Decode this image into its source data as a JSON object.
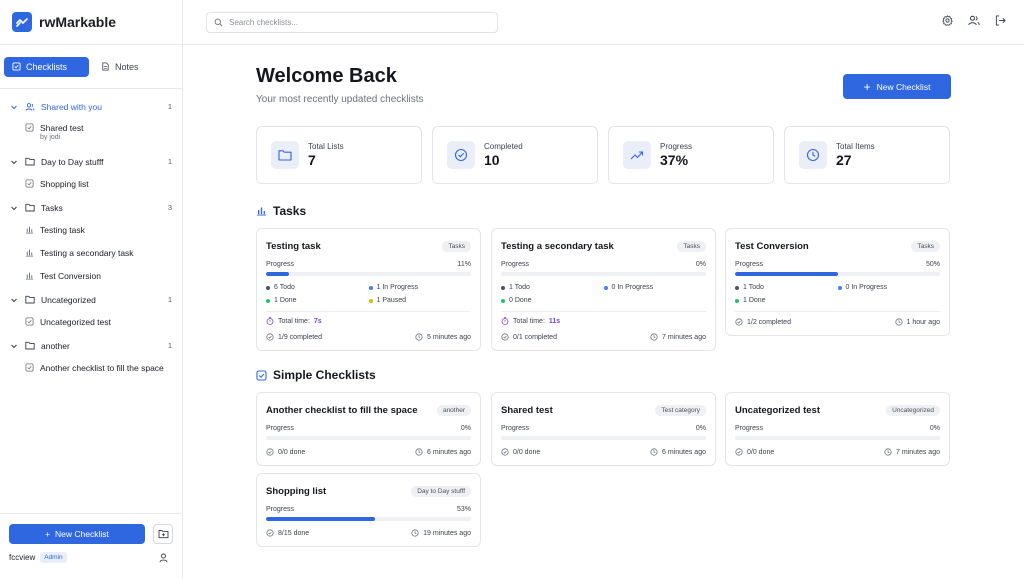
{
  "brand": {
    "name": "rwMarkable"
  },
  "tabs": {
    "checklists": "Checklists",
    "notes": "Notes"
  },
  "sidebar": {
    "groups": [
      {
        "label": "Shared with you",
        "count": "1",
        "items": [
          {
            "label": "Shared test",
            "sub": "by jodi"
          }
        ]
      },
      {
        "label": "Day to Day stufff",
        "count": "1",
        "items": [
          {
            "label": "Shopping list"
          }
        ]
      },
      {
        "label": "Tasks",
        "count": "3",
        "items": [
          {
            "label": "Testing task"
          },
          {
            "label": "Testing a secondary task"
          },
          {
            "label": "Test Conversion"
          }
        ]
      },
      {
        "label": "Uncategorized",
        "count": "1",
        "items": [
          {
            "label": "Uncategorized test"
          }
        ]
      },
      {
        "label": "another",
        "count": "1",
        "items": [
          {
            "label": "Another checklist to fill the space"
          }
        ]
      }
    ],
    "new_button": "New Checklist",
    "user": {
      "name": "fccview",
      "role": "Admin"
    }
  },
  "search": {
    "placeholder": "Search checklists..."
  },
  "main": {
    "title": "Welcome Back",
    "subtitle": "Your most recently updated checklists",
    "new_button": "New Checklist",
    "stats": [
      {
        "label": "Total Lists",
        "value": "7",
        "icon": "folder-icon"
      },
      {
        "label": "Completed",
        "value": "10",
        "icon": "check-circle-icon"
      },
      {
        "label": "Progress",
        "value": "37%",
        "icon": "trending-up-icon"
      },
      {
        "label": "Total Items",
        "value": "27",
        "icon": "clock-icon"
      }
    ],
    "tasks_section": "Tasks",
    "simple_section": "Simple Checklists",
    "progress_label": "Progress",
    "total_time_label": "Total time:",
    "task_cards": [
      {
        "title": "Testing task",
        "tag": "Tasks",
        "percent": "11%",
        "fill": 0.11,
        "todo": "6 Todo",
        "in_progress": "1 In Progress",
        "done": "1 Done",
        "paused": "1 Paused",
        "total_time": "7s",
        "completed": "1/9 completed",
        "updated": "5 minutes ago"
      },
      {
        "title": "Testing a secondary task",
        "tag": "Tasks",
        "percent": "0%",
        "fill": 0,
        "todo": "1 Todo",
        "in_progress": "0 In Progress",
        "done": "0 Done",
        "total_time": "11s",
        "completed": "0/1 completed",
        "updated": "7 minutes ago"
      },
      {
        "title": "Test Conversion",
        "tag": "Tasks",
        "percent": "50%",
        "fill": 0.5,
        "todo": "1 Todo",
        "in_progress": "0 In Progress",
        "done": "1 Done",
        "completed": "1/2 completed",
        "updated": "1 hour ago"
      }
    ],
    "simple_cards": [
      {
        "title": "Another checklist to fill the space",
        "tag": "another",
        "percent": "0%",
        "fill": 0,
        "done": "0/0 done",
        "updated": "6 minutes ago"
      },
      {
        "title": "Shared test",
        "tag": "Test category",
        "percent": "0%",
        "fill": 0,
        "done": "0/0 done",
        "updated": "6 minutes ago"
      },
      {
        "title": "Uncategorized test",
        "tag": "Uncategorized",
        "percent": "0%",
        "fill": 0,
        "done": "0/0 done",
        "updated": "7 minutes ago"
      },
      {
        "title": "Shopping list",
        "tag": "Day to Day stufff",
        "percent": "53%",
        "fill": 0.53,
        "done": "8/15 done",
        "updated": "19 minutes ago"
      }
    ]
  },
  "colors": {
    "accent": "#2f67e0",
    "todo": "#4b5563",
    "in_progress": "#3b82f6",
    "done": "#22c55e",
    "paused": "#eab308",
    "time": "#7b3fe4"
  }
}
